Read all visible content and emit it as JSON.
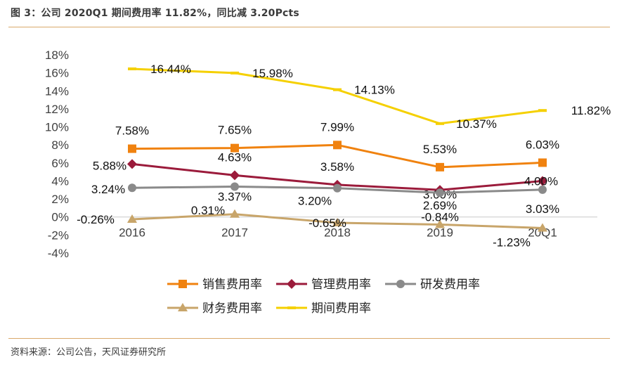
{
  "figure": {
    "title": "图 3：公司 2020Q1 期间费用率 11.82%，同比减 3.20Pcts",
    "source": "资料来源：公司公告，天风证券研究所"
  },
  "chart_data": {
    "type": "line",
    "categories": [
      "2016",
      "2017",
      "2018",
      "2019",
      "20Q1"
    ],
    "y_unit": "%",
    "ylim": [
      -4,
      18
    ],
    "y_ticks": [
      "18%",
      "16%",
      "14%",
      "12%",
      "10%",
      "8%",
      "6%",
      "4%",
      "2%",
      "0%",
      "-2%",
      "-4%"
    ],
    "grid": false,
    "legend_position": "bottom",
    "series": [
      {
        "name": "销售费用率",
        "color": "#F0820F",
        "marker": "square",
        "values": [
          7.58,
          7.65,
          7.99,
          5.53,
          6.03
        ],
        "labels": [
          "7.58%",
          "7.65%",
          "7.99%",
          "5.53%",
          "6.03%"
        ]
      },
      {
        "name": "管理费用率",
        "color": "#9B1B3B",
        "marker": "diamond",
        "values": [
          5.88,
          4.63,
          3.58,
          3.0,
          4.0
        ],
        "labels": [
          "5.88%",
          "4.63%",
          "3.58%",
          "3.00%",
          "4.00%"
        ]
      },
      {
        "name": "研发费用率",
        "color": "#8A8A8A",
        "marker": "circle",
        "values": [
          3.24,
          3.37,
          3.2,
          2.69,
          3.03
        ],
        "labels": [
          "3.24%",
          "3.37%",
          "3.20%",
          "2.69%",
          "3.03%"
        ]
      },
      {
        "name": "财务费用率",
        "color": "#C8A56A",
        "marker": "triangle",
        "values": [
          -0.26,
          0.31,
          -0.65,
          -0.84,
          -1.23
        ],
        "labels": [
          "-0.26%",
          "0.31%",
          "-0.65%",
          "-0.84%",
          "-1.23%"
        ]
      },
      {
        "name": "期间费用率",
        "color": "#F5D000",
        "marker": "dash",
        "values": [
          16.44,
          15.98,
          14.13,
          10.37,
          11.82
        ],
        "labels": [
          "16.44%",
          "15.98%",
          "14.13%",
          "10.37%",
          "11.82%"
        ]
      }
    ]
  }
}
